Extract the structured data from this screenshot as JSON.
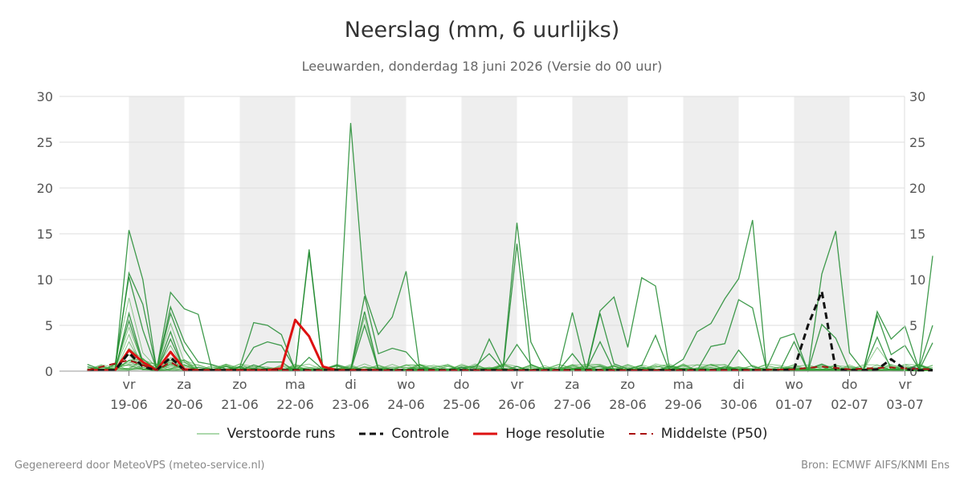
{
  "chart_data": {
    "type": "line",
    "title": "Neerslag (mm, 6 uurlijks)",
    "subtitle": "Leeuwarden, donderdag 18 juni 2026 (Versie do 00 uur)",
    "ylim": [
      0,
      30
    ],
    "yticks": [
      0,
      5,
      10,
      15,
      20,
      25,
      30
    ],
    "xlim_days": [
      -0.75,
      14.5
    ],
    "day_labels": [
      {
        "day": "vr",
        "date": "19-06"
      },
      {
        "day": "za",
        "date": "20-06"
      },
      {
        "day": "zo",
        "date": "21-06"
      },
      {
        "day": "ma",
        "date": "22-06"
      },
      {
        "day": "di",
        "date": "23-06"
      },
      {
        "day": "wo",
        "date": "24-06"
      },
      {
        "day": "do",
        "date": "25-06"
      },
      {
        "day": "vr",
        "date": "26-06"
      },
      {
        "day": "za",
        "date": "27-06"
      },
      {
        "day": "zo",
        "date": "28-06"
      },
      {
        "day": "ma",
        "date": "29-06"
      },
      {
        "day": "di",
        "date": "30-06"
      },
      {
        "day": "wo",
        "date": "01-07"
      },
      {
        "day": "do",
        "date": "02-07"
      },
      {
        "day": "vr",
        "date": "03-07"
      }
    ],
    "weekend_shading": true,
    "grid": true,
    "legend_position": "bottom",
    "series": [
      {
        "name": "Hoge resolutie",
        "color": "#dd1111",
        "style": "solid",
        "x": [
          -0.75,
          -0.5,
          -0.25,
          0,
          0.25,
          0.5,
          0.75,
          1,
          1.25,
          1.5,
          1.75,
          2,
          2.25,
          2.5,
          2.75,
          3,
          3.25,
          3.5,
          3.75,
          4,
          4.25,
          4.5
        ],
        "values": [
          0.1,
          0.1,
          0.1,
          2.3,
          1.0,
          0.1,
          2.1,
          0.2,
          0.1,
          0.1,
          0.1,
          0.1,
          0.1,
          0.1,
          0.3,
          5.6,
          3.8,
          0.5,
          0.1,
          0.1,
          0.1,
          0.1
        ]
      },
      {
        "name": "Controle",
        "color": "#111111",
        "style": "dashed",
        "x": [
          -0.75,
          -0.5,
          -0.25,
          0,
          0.25,
          0.5,
          0.75,
          1,
          1.25,
          1.5,
          2,
          3,
          4,
          5,
          6,
          7,
          8,
          9,
          10,
          11,
          11.75,
          12,
          12.25,
          12.5,
          12.75,
          13,
          13.25,
          13.5,
          13.75,
          14,
          14.25,
          14.5
        ],
        "values": [
          0.1,
          0.1,
          0.1,
          2.0,
          0.5,
          0.1,
          1.5,
          0.1,
          0.1,
          0.1,
          0.1,
          0.1,
          0.1,
          0.1,
          0.1,
          0.1,
          0.1,
          0.1,
          0.1,
          0.1,
          0.1,
          0.2,
          5.0,
          8.7,
          0.2,
          0.1,
          0.1,
          0.2,
          1.3,
          0.2,
          0.1,
          0.1
        ]
      },
      {
        "name": "Middelste (P50)",
        "color": "#aa1111",
        "style": "dashed",
        "x": [
          -0.75,
          0,
          0.5,
          0.75,
          1,
          2,
          3,
          4,
          5,
          6,
          7,
          8,
          9,
          10,
          11,
          12,
          12.5,
          13,
          13.75,
          14,
          14.5
        ],
        "values": [
          0.1,
          1.2,
          0.1,
          1.0,
          0.1,
          0.1,
          0.1,
          0.1,
          0.1,
          0.1,
          0.1,
          0.1,
          0.1,
          0.1,
          0.1,
          0.2,
          0.5,
          0.2,
          0.4,
          0.3,
          0.2
        ]
      }
    ],
    "ensemble": {
      "name": "Verstoorde runs",
      "color": "#33a033",
      "peaks": [
        {
          "x": 0,
          "values": [
            15.4,
            10.7,
            10.3,
            8.0,
            6.3,
            5.5,
            4.8,
            4.0,
            3.2,
            2.5,
            1.8,
            1.2,
            0.6
          ]
        },
        {
          "x": 0.25,
          "values": [
            10.0,
            7.3,
            4.5,
            2.0,
            1.0
          ]
        },
        {
          "x": 0.75,
          "values": [
            8.6,
            7.0,
            6.3,
            5.2,
            4.3,
            3.5,
            2.8,
            2.0,
            1.2,
            0.5
          ]
        },
        {
          "x": 1,
          "values": [
            6.8,
            3.2,
            2.3,
            1.0
          ]
        },
        {
          "x": 1.25,
          "values": [
            6.2,
            1.0
          ]
        },
        {
          "x": 2.25,
          "values": [
            5.3,
            2.6
          ]
        },
        {
          "x": 2.5,
          "values": [
            5.0,
            3.2,
            1.0
          ]
        },
        {
          "x": 2.75,
          "values": [
            4.0,
            2.8,
            1.0
          ]
        },
        {
          "x": 3.25,
          "values": [
            13.3,
            13.0,
            1.5
          ]
        },
        {
          "x": 4,
          "values": [
            27.1
          ]
        },
        {
          "x": 4.25,
          "values": [
            8.5,
            8.2,
            6.5,
            5.9,
            5.0
          ]
        },
        {
          "x": 4.5,
          "values": [
            4.0,
            1.9
          ]
        },
        {
          "x": 4.75,
          "values": [
            5.9,
            2.5
          ]
        },
        {
          "x": 5,
          "values": [
            10.9,
            2.1
          ]
        },
        {
          "x": 6.5,
          "values": [
            3.5,
            1.9
          ]
        },
        {
          "x": 7,
          "values": [
            16.2,
            13.9,
            2.9
          ]
        },
        {
          "x": 7.25,
          "values": [
            3.2
          ]
        },
        {
          "x": 8,
          "values": [
            6.4,
            1.9
          ]
        },
        {
          "x": 8.5,
          "values": [
            6.6,
            6.3,
            3.2
          ]
        },
        {
          "x": 8.75,
          "values": [
            8.1,
            0.8
          ]
        },
        {
          "x": 9,
          "values": [
            2.6
          ]
        },
        {
          "x": 9.25,
          "values": [
            10.2
          ]
        },
        {
          "x": 9.5,
          "values": [
            9.3,
            3.9
          ]
        },
        {
          "x": 10,
          "values": [
            1.3
          ]
        },
        {
          "x": 10.25,
          "values": [
            4.3
          ]
        },
        {
          "x": 10.5,
          "values": [
            5.2,
            2.7
          ]
        },
        {
          "x": 10.75,
          "values": [
            7.9,
            3.0
          ]
        },
        {
          "x": 11,
          "values": [
            10.1,
            7.8,
            2.3
          ]
        },
        {
          "x": 11.25,
          "values": [
            16.5,
            6.9
          ]
        },
        {
          "x": 11.75,
          "values": [
            3.6
          ]
        },
        {
          "x": 12,
          "values": [
            4.1,
            3.2
          ]
        },
        {
          "x": 12.5,
          "values": [
            10.6,
            5.1
          ]
        },
        {
          "x": 12.75,
          "values": [
            15.3,
            3.6
          ]
        },
        {
          "x": 13,
          "values": [
            2.0
          ]
        },
        {
          "x": 13.5,
          "values": [
            6.5,
            6.1,
            3.7,
            2.6
          ]
        },
        {
          "x": 13.75,
          "values": [
            3.5,
            1.8
          ]
        },
        {
          "x": 14,
          "values": [
            4.9,
            2.8
          ]
        },
        {
          "x": 14.5,
          "values": [
            12.6,
            5.0,
            3.1
          ]
        }
      ]
    }
  },
  "legend": {
    "ensemble_label": "Verstoorde runs",
    "control_label": "Controle",
    "hires_label": "Hoge resolutie",
    "median_label": "Middelste (P50)"
  },
  "footer": {
    "left": "Gegenereerd door MeteoVPS (meteo-service.nl)",
    "right": "Bron: ECMWF AIFS/KNMI Ens"
  },
  "colors": {
    "weekend_band": "#eeeeee",
    "grid": "#dddddd",
    "ensemble": "#33a033",
    "control": "#111111",
    "hires": "#dd1111",
    "median": "#aa1111"
  }
}
